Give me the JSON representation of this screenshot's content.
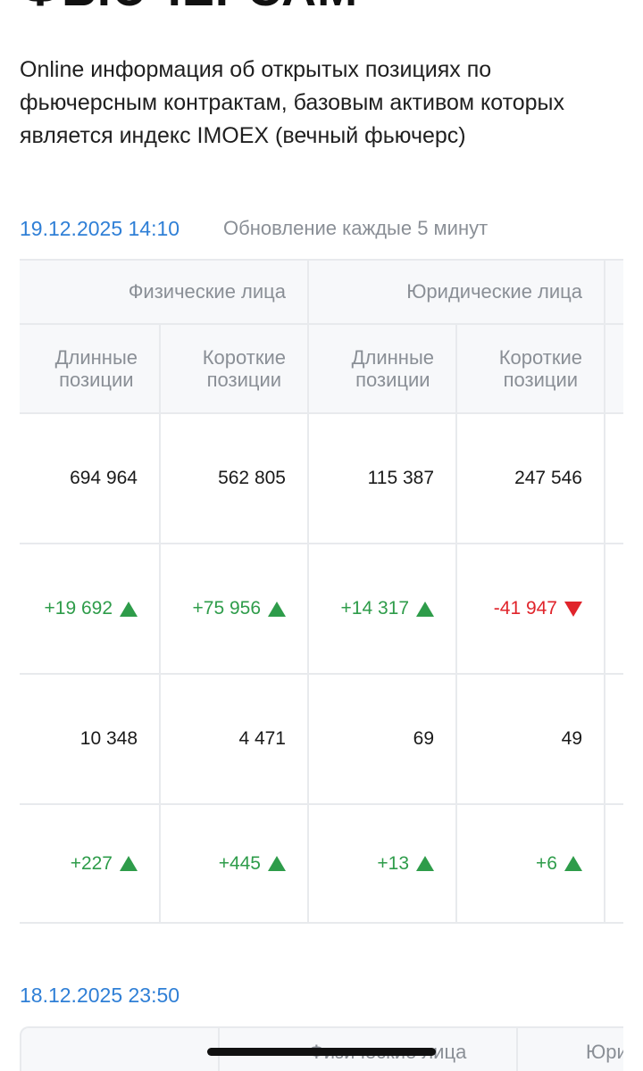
{
  "page": {
    "title": "ФЬЮЧЕРСАМ",
    "description": "Online информация об открытых позициях по фьючерсным контрактам, базовым активом которых является индекс IMOEX (вечный фьючерс)"
  },
  "snapshot1": {
    "timestamp": "19.12.2025 14:10",
    "update_note": "Обновление каждые 5 минут",
    "groups": [
      "Физические лица",
      "Юридические лица"
    ],
    "subheaders": [
      [
        "Длинные",
        "позиции"
      ],
      [
        "Короткие",
        "позиции"
      ],
      [
        "Длинные",
        "позиции"
      ],
      [
        "Короткие",
        "позиции"
      ]
    ],
    "rows": [
      [
        "694 964",
        "562 805",
        "115 387",
        "247 546"
      ],
      [
        "+19 692",
        "+75 956",
        "+14 317",
        "-41 947"
      ],
      [
        "10 348",
        "4 471",
        "69",
        "49"
      ],
      [
        "+227",
        "+445",
        "+13",
        "+6"
      ]
    ],
    "colors": {
      "up": "#2e9c4a",
      "down": "#e0242b",
      "accent": "#2f7fd6"
    }
  },
  "snapshot2": {
    "timestamp": "18.12.2025 23:50",
    "groups": [
      "Физические лица",
      "Юри"
    ]
  }
}
